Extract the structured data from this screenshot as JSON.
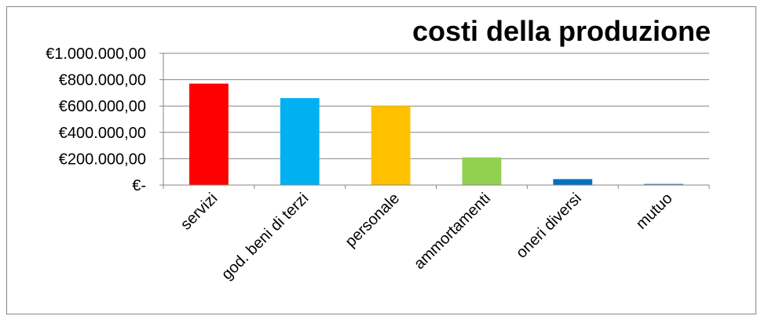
{
  "chart_data": {
    "type": "bar",
    "title": "costi della produzione",
    "xlabel": "",
    "ylabel": "",
    "categories": [
      "servizi",
      "god. beni di terzi",
      "personale",
      "ammortamenti",
      "oneri diversi",
      "mutuo"
    ],
    "values": [
      770000,
      660000,
      600000,
      210000,
      45000,
      5000
    ],
    "colors": [
      "#ff0000",
      "#00b0f0",
      "#ffc000",
      "#92d050",
      "#0070c0",
      "#4f81bd"
    ],
    "ylim": [
      0,
      1000000
    ],
    "yticks": [
      0,
      200000,
      400000,
      600000,
      800000,
      1000000
    ],
    "ytick_labels": [
      "€-",
      "€200.000,00",
      "€400.000,00",
      "€600.000,00",
      "€800.000,00",
      "€1.000.000,00"
    ],
    "grid": true,
    "legend": "none"
  }
}
